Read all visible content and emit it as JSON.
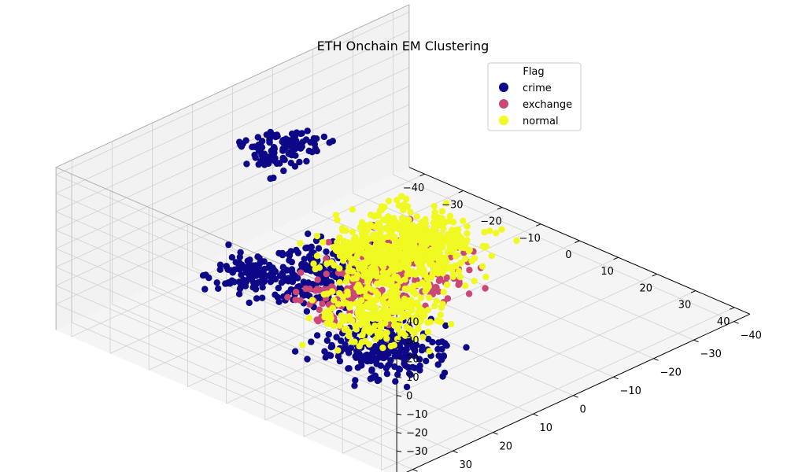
{
  "chart_data": {
    "type": "scatter",
    "title": "ETH Onchain EM Clustering",
    "projection": "3d",
    "grid": true,
    "legend": {
      "title": "Flag",
      "placement": "top-right",
      "entries": [
        {
          "label": "crime",
          "color": "#0d0887"
        },
        {
          "label": "exchange",
          "color": "#cc4778"
        },
        {
          "label": "normal",
          "color": "#f0f921"
        }
      ]
    },
    "axes": {
      "x": {
        "ticks": [
          "−40",
          "−30",
          "−20",
          "−10",
          "0",
          "10",
          "20",
          "30",
          "40"
        ]
      },
      "y": {
        "ticks": [
          "−40",
          "−30",
          "−20",
          "−10",
          "0",
          "10",
          "20",
          "30",
          "40"
        ]
      },
      "z": {
        "ticks": [
          "40",
          "30",
          "20",
          "10",
          "0",
          "−10",
          "−20",
          "−30"
        ]
      }
    },
    "series": [
      {
        "name": "crime",
        "color": "#0d0887",
        "clusters": [
          {
            "center": [
              -5,
              32,
              10
            ],
            "spread": 6,
            "n": 120
          },
          {
            "center": [
              -35,
              -5,
              12
            ],
            "spread": 6,
            "n": 120
          },
          {
            "center": [
              -10,
              10,
              -18
            ],
            "spread": 9,
            "n": 220
          },
          {
            "center": [
              15,
              20,
              -25
            ],
            "spread": 9,
            "n": 220
          }
        ]
      },
      {
        "name": "exchange",
        "color": "#cc4778",
        "clusters": [
          {
            "center": [
              10,
              10,
              5
            ],
            "spread": 10,
            "n": 260
          },
          {
            "center": [
              15,
              30,
              10
            ],
            "spread": 7,
            "n": 60
          }
        ]
      },
      {
        "name": "normal",
        "color": "#f0f921",
        "clusters": [
          {
            "center": [
              5,
              5,
              5
            ],
            "spread": 11,
            "n": 650
          },
          {
            "center": [
              20,
              25,
              5
            ],
            "spread": 9,
            "n": 260
          }
        ]
      }
    ]
  }
}
